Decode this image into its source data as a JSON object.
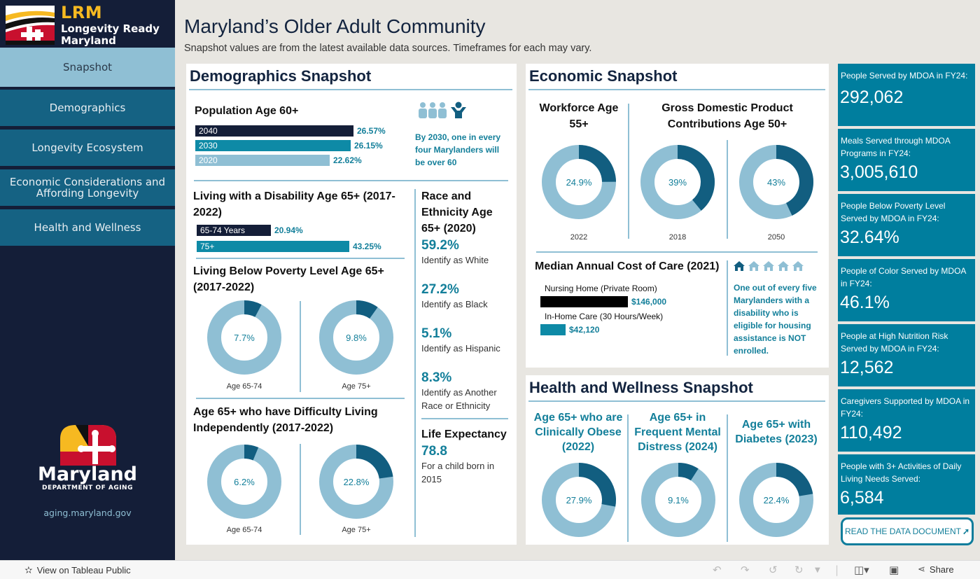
{
  "brand": {
    "acronym": "LRM",
    "name_line1": "Longevity Ready",
    "name_line2": "Maryland"
  },
  "nav": [
    {
      "label": "Snapshot",
      "active": true
    },
    {
      "label": "Demographics"
    },
    {
      "label": "Longevity Ecosystem"
    },
    {
      "label": "Economic Considerations and Affording Longevity"
    },
    {
      "label": "Health and Wellness"
    }
  ],
  "agency": {
    "name": "Maryland",
    "dept": "DEPARTMENT OF AGING",
    "url": "aging.maryland.gov"
  },
  "header": {
    "title": "Maryland’s Older Adult Community",
    "subtitle": "Snapshot values are from the latest available data sources. Timeframes for each may vary."
  },
  "demographics": {
    "title": "Demographics Snapshot",
    "population": {
      "title": "Population Age 60+",
      "bars": [
        {
          "label": "2040",
          "value": 26.57,
          "display": "26.57%",
          "color": "#141e38"
        },
        {
          "label": "2030",
          "value": 26.15,
          "display": "26.15%",
          "color": "#0e8aa6"
        },
        {
          "label": "2020",
          "value": 22.62,
          "display": "22.62%",
          "color": "#8fbfd4"
        }
      ],
      "note": "By 2030, one in every four Marylanders will be over 60"
    },
    "disability": {
      "title": "Living with a Disability Age 65+ (2017-2022)",
      "bars": [
        {
          "label": "65-74 Years",
          "value": 20.94,
          "display": "20.94%",
          "color": "#141e38"
        },
        {
          "label": "75+",
          "value": 43.25,
          "display": "43.25%",
          "color": "#0e8aa6"
        }
      ]
    },
    "poverty": {
      "title": "Living Below Poverty Level Age 65+ (2017-2022)",
      "donuts": [
        {
          "label": "Age 65-74",
          "value": 7.7,
          "display": "7.7%"
        },
        {
          "label": "Age 75+",
          "value": 9.8,
          "display": "9.8%"
        }
      ]
    },
    "independent": {
      "title": "Age 65+ who have Difficulty Living Independently  (2017-2022)",
      "donuts": [
        {
          "label": "Age 65-74",
          "value": 6.2,
          "display": "6.2%"
        },
        {
          "label": "Age 75+",
          "value": 22.8,
          "display": "22.8%"
        }
      ]
    },
    "race": {
      "title": "Race and Ethnicity Age 65+ (2020)",
      "items": [
        {
          "pct": "59.2%",
          "desc": "Identify as White"
        },
        {
          "pct": "27.2%",
          "desc": "Identify as Black"
        },
        {
          "pct": "5.1%",
          "desc": "Identify as Hispanic"
        },
        {
          "pct": "8.3%",
          "desc": "Identify as Another Race or Ethnicity"
        }
      ]
    },
    "life": {
      "title": "Life Expectancy",
      "value": "78.8",
      "desc": "For a child born in 2015"
    }
  },
  "economic": {
    "title": "Economic Snapshot",
    "workforce": {
      "title": "Workforce Age 55+",
      "donut": {
        "label": "2022",
        "value": 24.9,
        "display": "24.9%"
      }
    },
    "gdp": {
      "title": "Gross Domestic Product Contributions Age 50+",
      "donuts": [
        {
          "label": "2018",
          "value": 39,
          "display": "39%"
        },
        {
          "label": "2050",
          "value": 43,
          "display": "43%"
        }
      ]
    },
    "cost": {
      "title": "Median Annual Cost of Care (2021)",
      "bars": [
        {
          "label": "Nursing Home (Private Room)",
          "value": 146000,
          "display": "$146,000",
          "color": "#000000"
        },
        {
          "label": "In-Home Care (30 Hours/Week)",
          "value": 42120,
          "display": "$42,120",
          "color": "#0e8aa6"
        }
      ],
      "houses_total": 5,
      "houses_highlighted": 1,
      "note": "One out of every five Marylanders with a disability who is eligible for housing assistance is NOT enrolled."
    }
  },
  "health": {
    "title": "Health and Wellness Snapshot",
    "items": [
      {
        "title": "Age 65+ who are Clinically Obese (2022)",
        "value": 27.9,
        "display": "27.9%"
      },
      {
        "title": "Age 65+ in Frequent Mental Distress (2024)",
        "value": 9.1,
        "display": "9.1%"
      },
      {
        "title": "Age 65+ with Diabetes (2023)",
        "value": 22.4,
        "display": "22.4%"
      }
    ]
  },
  "kpis": [
    {
      "label": "People Served by MDOA in FY24:",
      "value": "292,062"
    },
    {
      "label": "Meals Served through MDOA Programs in FY24:",
      "value": "3,005,610"
    },
    {
      "label": "People Below Poverty Level Served by MDOA in FY24:",
      "value": "32.64%"
    },
    {
      "label": "People of Color Served by MDOA in FY24:",
      "value": "46.1%"
    },
    {
      "label": "People at High Nutrition Risk Served by MDOA in FY24:",
      "value": "12,562"
    },
    {
      "label": "Caregivers Supported by MDOA in FY24:",
      "value": "110,492"
    },
    {
      "label": "People with 3+ Activities of Daily Living Needs Served:",
      "value": "6,584"
    }
  ],
  "read_button": "READ THE DATA DOCUMENT",
  "footer": {
    "tableau_link": "View on Tableau Public",
    "share": "Share"
  },
  "colors": {
    "accent": "#007e9e",
    "donut_fill": "#125e80",
    "donut_track": "#8fbfd4",
    "navy": "#141e38",
    "gold": "#f6b921"
  }
}
